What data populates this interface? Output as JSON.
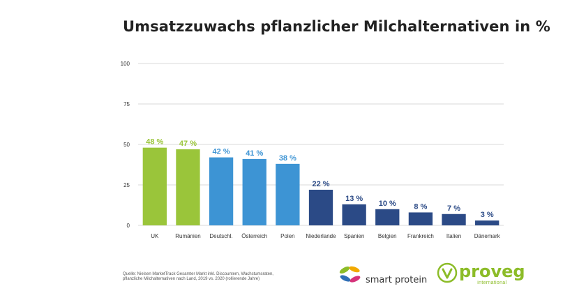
{
  "title": "Umsatzzuwachs pflanzlicher Milchalternativen in %",
  "source_text": "Quelle: Nielsen MarketTrack Gesamter Markt inkl. Discountern, Wachstumsraten, pflanzliche Milchalternativen nach Land, 2019 vs. 2020 (rollierende Jahre)",
  "logos": {
    "smart_protein": "smart protein",
    "proveg_name": "proveg",
    "proveg_sub": "international"
  },
  "colors": {
    "green": "#9ac53a",
    "blue": "#3d94d4",
    "navy": "#2b4a86",
    "grid": "#d9d9d9"
  },
  "chart_data": {
    "type": "bar",
    "title": "Umsatzzuwachs pflanzlicher Milchalternativen in %",
    "categories": [
      "UK",
      "Rumänien",
      "Deutschl.",
      "Österreich",
      "Polen",
      "Niederlande",
      "Spanien",
      "Belgien",
      "Frankreich",
      "Italien",
      "Dänemark"
    ],
    "values": [
      48,
      47,
      42,
      41,
      38,
      22,
      13,
      10,
      8,
      7,
      3
    ],
    "value_labels": [
      "48 %",
      "47 %",
      "42 %",
      "41 %",
      "38 %",
      "22 %",
      "13 %",
      "10 %",
      "8 %",
      "7 %",
      "3 %"
    ],
    "bar_colors": [
      "green",
      "green",
      "blue",
      "blue",
      "blue",
      "navy",
      "navy",
      "navy",
      "navy",
      "navy",
      "navy"
    ],
    "ylim": [
      0,
      100
    ],
    "yticks": [
      0,
      25,
      50,
      75,
      100
    ],
    "grid": true,
    "xlabel": "",
    "ylabel": ""
  }
}
